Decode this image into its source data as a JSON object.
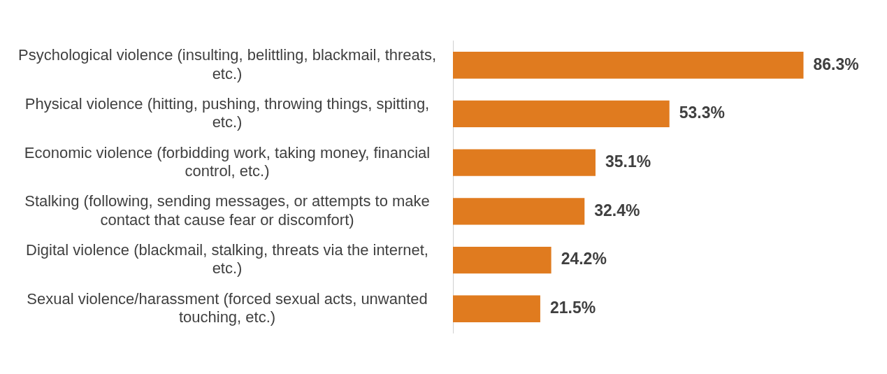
{
  "chart_data": {
    "type": "bar",
    "orientation": "horizontal",
    "categories": [
      "Psychological violence (insulting, belittling, blackmail, threats, etc.)",
      "Physical violence (hitting, pushing, throwing things, spitting, etc.)",
      "Economic violence (forbidding work, taking money, financial control, etc.)",
      "Stalking (following, sending messages, or attempts to make contact that cause fear or discomfort)",
      "Digital violence (blackmail, stalking, threats via the internet, etc.)",
      "Sexual violence/harassment (forced sexual acts, unwanted touching, etc.)"
    ],
    "values": [
      86.3,
      53.3,
      35.1,
      32.4,
      24.2,
      21.5
    ],
    "value_labels": [
      "86.3%",
      "53.3%",
      "35.1%",
      "32.4%",
      "24.2%",
      "21.5%"
    ],
    "color": "#e07b1f",
    "grid": false,
    "legend": false
  }
}
